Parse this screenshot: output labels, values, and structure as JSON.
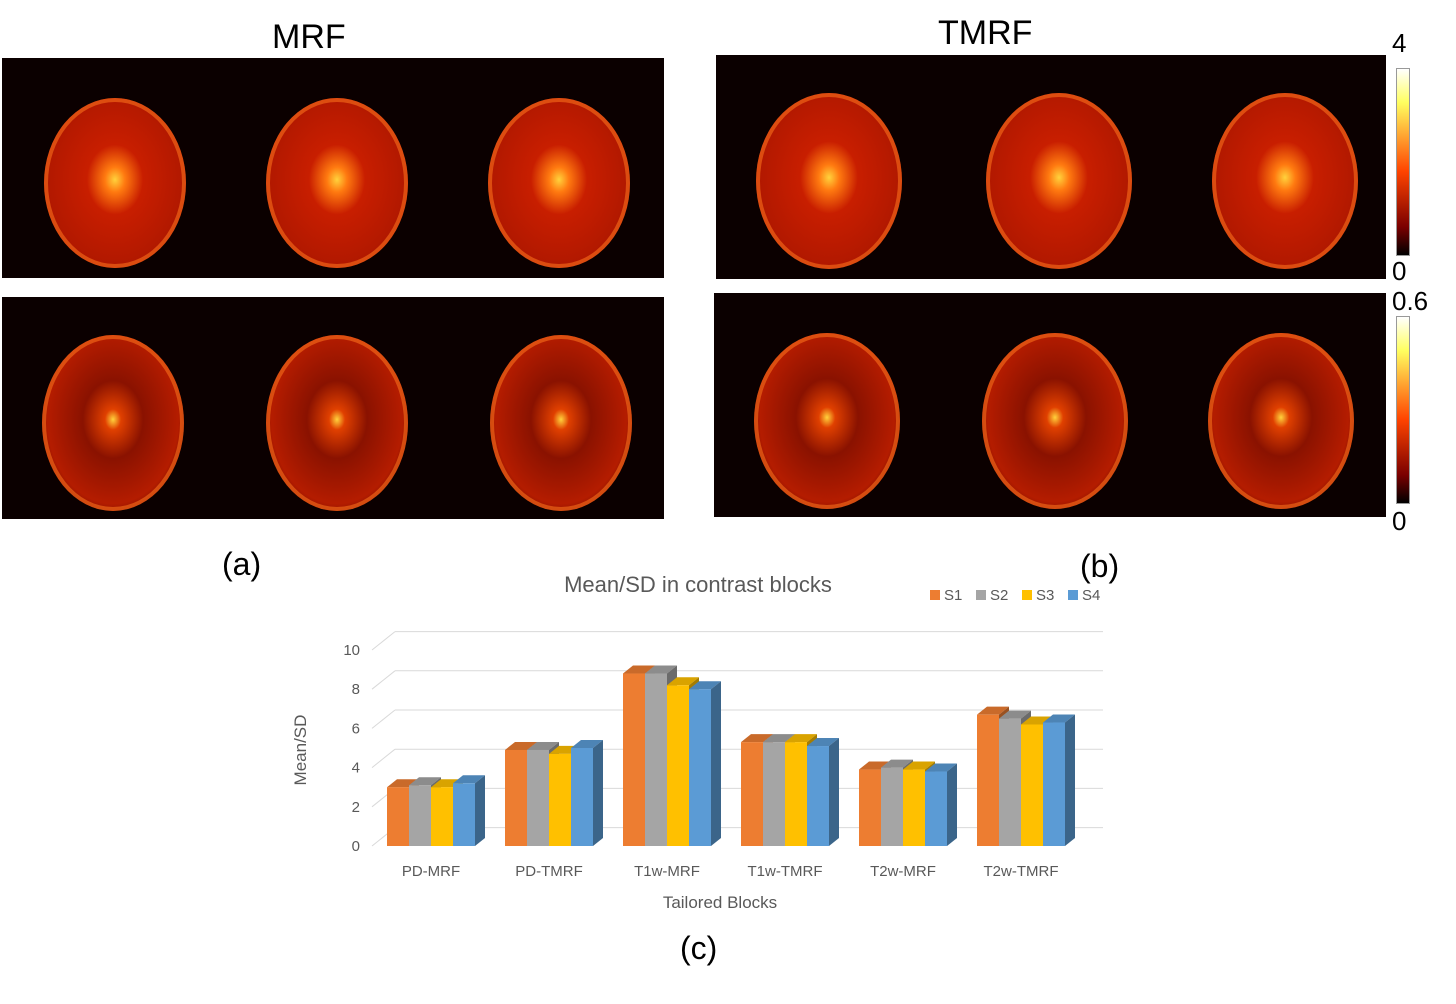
{
  "panels": {
    "left_title": "MRF",
    "right_title": "TMRF",
    "label_a": "(a)",
    "label_b": "(b)",
    "label_c": "(c)"
  },
  "colorbars": [
    {
      "max": "4",
      "min": "0"
    },
    {
      "max": "0.6",
      "min": "0"
    }
  ],
  "colors": {
    "background_strip": "#0b0000",
    "brain_base": "#c81e00",
    "brain_highlight": "#ffd23c"
  },
  "chart_data": {
    "type": "bar",
    "style": "3d-clustered",
    "title": "Mean/SD in contrast blocks",
    "xlabel": "Tailored Blocks",
    "ylabel": "Mean/SD",
    "ylim": [
      0,
      10
    ],
    "yticks": [
      "0",
      "2",
      "4",
      "6",
      "8",
      "10"
    ],
    "grid": true,
    "legend_position": "top-right",
    "categories": [
      "PD-MRF",
      "PD-TMRF",
      "T1w-MRF",
      "T1w-TMRF",
      "T2w-MRF",
      "T2w-TMRF"
    ],
    "series": [
      {
        "name": "S1",
        "color": "#ed7d31",
        "values": [
          3.0,
          4.9,
          8.8,
          5.3,
          3.9,
          6.7
        ]
      },
      {
        "name": "S2",
        "color": "#a5a5a5",
        "values": [
          3.1,
          4.9,
          8.8,
          5.3,
          4.0,
          6.5
        ]
      },
      {
        "name": "S3",
        "color": "#ffc000",
        "values": [
          3.0,
          4.7,
          8.2,
          5.3,
          3.9,
          6.2
        ]
      },
      {
        "name": "S4",
        "color": "#5b9bd5",
        "values": [
          3.2,
          5.0,
          8.0,
          5.1,
          3.8,
          6.3
        ]
      }
    ]
  }
}
